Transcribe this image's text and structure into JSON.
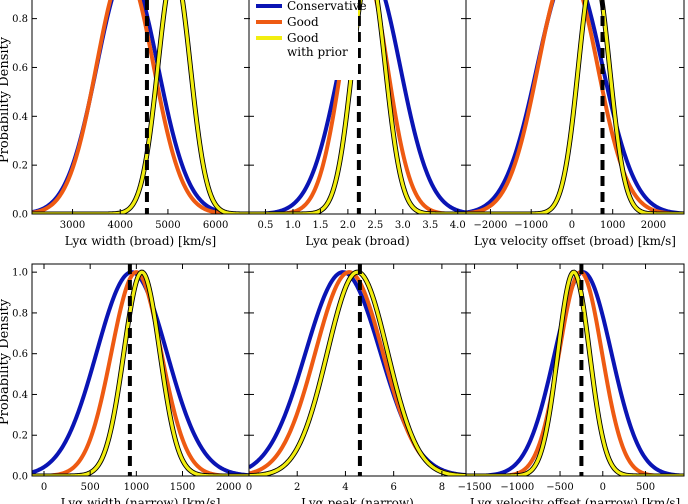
{
  "figure": {
    "ylabel": "Probability Density",
    "y_ticks": [
      "0.0",
      "0.2",
      "0.4",
      "0.6",
      "0.8",
      "1.0"
    ],
    "legend": {
      "placement": "top, inside top-center panel",
      "entries": [
        "Conservative",
        "Good",
        "Good\nwith prior"
      ]
    },
    "colors": {
      "Conservative": "#0a14b4",
      "Good": "#ee5a12",
      "Good with prior": "#f2ee10",
      "truth_line": "#000000"
    }
  },
  "chart_data": [
    {
      "type": "line",
      "panel": "broad-width",
      "xlabel": "Lyα width (broad) [km/s]",
      "xlim": [
        2150,
        6700
      ],
      "ylim": [
        0,
        1.04
      ],
      "x_ticks": [
        3000,
        4000,
        5000,
        6000
      ],
      "x_tick_labels": [
        "3000",
        "4000",
        "5000",
        "6000"
      ],
      "truth": 4560,
      "series": [
        {
          "name": "Conservative",
          "mu": 4150,
          "sigma": 640
        },
        {
          "name": "Good",
          "mu": 4100,
          "sigma": 600
        },
        {
          "name": "Good with prior",
          "mu": 5130,
          "sigma": 340
        }
      ]
    },
    {
      "type": "line",
      "panel": "broad-peak",
      "xlabel": "Lyα peak (broad)",
      "xlim": [
        0.2,
        4.15
      ],
      "ylim": [
        0,
        1.04
      ],
      "x_ticks": [
        0.5,
        1.0,
        1.5,
        2.0,
        2.5,
        3.0,
        3.5,
        4.0
      ],
      "x_tick_labels": [
        "0.5",
        "1.0",
        "1.5",
        "2.0",
        "2.5",
        "3.0",
        "3.5",
        "4.0"
      ],
      "truth": 2.2,
      "series": [
        {
          "name": "Conservative",
          "mu": 2.4,
          "sigma": 0.55
        },
        {
          "name": "Good",
          "mu": 2.3,
          "sigma": 0.42
        },
        {
          "name": "Good with prior",
          "mu": 2.38,
          "sigma": 0.3
        }
      ]
    },
    {
      "type": "line",
      "panel": "broad-offset",
      "xlabel": "Lyα velocity offset (broad) [km/s]",
      "xlim": [
        -2600,
        2750
      ],
      "ylim": [
        0,
        1.04
      ],
      "x_ticks": [
        -2000,
        -1000,
        0,
        1000,
        2000
      ],
      "x_tick_labels": [
        "−2000",
        "−1000",
        "0",
        "1000",
        "2000"
      ],
      "truth": 750,
      "series": [
        {
          "name": "Conservative",
          "mu": -50,
          "sigma": 800
        },
        {
          "name": "Good",
          "mu": -100,
          "sigma": 730
        },
        {
          "name": "Good with prior",
          "mu": 540,
          "sigma": 380
        }
      ]
    },
    {
      "type": "line",
      "panel": "narrow-width",
      "xlabel": "Lyα width (narrow) [km/s]",
      "xlim": [
        -130,
        2220
      ],
      "ylim": [
        0,
        1.04
      ],
      "x_ticks": [
        0,
        500,
        1000,
        1500,
        2000
      ],
      "x_tick_labels": [
        "0",
        "500",
        "1000",
        "1500",
        "2000"
      ],
      "truth": 930,
      "series": [
        {
          "name": "Conservative",
          "mu": 950,
          "sigma": 380
        },
        {
          "name": "Good",
          "mu": 1000,
          "sigma": 270
        },
        {
          "name": "Good with prior",
          "mu": 1060,
          "sigma": 195
        }
      ]
    },
    {
      "type": "line",
      "panel": "narrow-peak",
      "xlabel": "Lyα peak (narrow)",
      "xlim": [
        0,
        9
      ],
      "ylim": [
        0,
        1.04
      ],
      "x_ticks": [
        0,
        2,
        4,
        6,
        8
      ],
      "x_tick_labels": [
        "0",
        "2",
        "4",
        "6",
        "8"
      ],
      "truth": 4.6,
      "series": [
        {
          "name": "Conservative",
          "mu": 3.9,
          "sigma": 1.55
        },
        {
          "name": "Good",
          "mu": 4.15,
          "sigma": 1.4
        },
        {
          "name": "Good with prior",
          "mu": 4.5,
          "sigma": 1.25
        }
      ]
    },
    {
      "type": "line",
      "panel": "narrow-offset",
      "xlabel": "Lyα velocity offset (narrow) [km/s]",
      "xlim": [
        -1600,
        950
      ],
      "ylim": [
        0,
        1.04
      ],
      "x_ticks": [
        -1500,
        -1000,
        -500,
        0,
        500
      ],
      "x_tick_labels": [
        "−1500",
        "−1000",
        "−500",
        "0",
        "500"
      ],
      "truth": -250,
      "series": [
        {
          "name": "Conservative",
          "mu": -230,
          "sigma": 330
        },
        {
          "name": "Good",
          "mu": -260,
          "sigma": 250
        },
        {
          "name": "Good with prior",
          "mu": -340,
          "sigma": 185
        }
      ]
    }
  ]
}
